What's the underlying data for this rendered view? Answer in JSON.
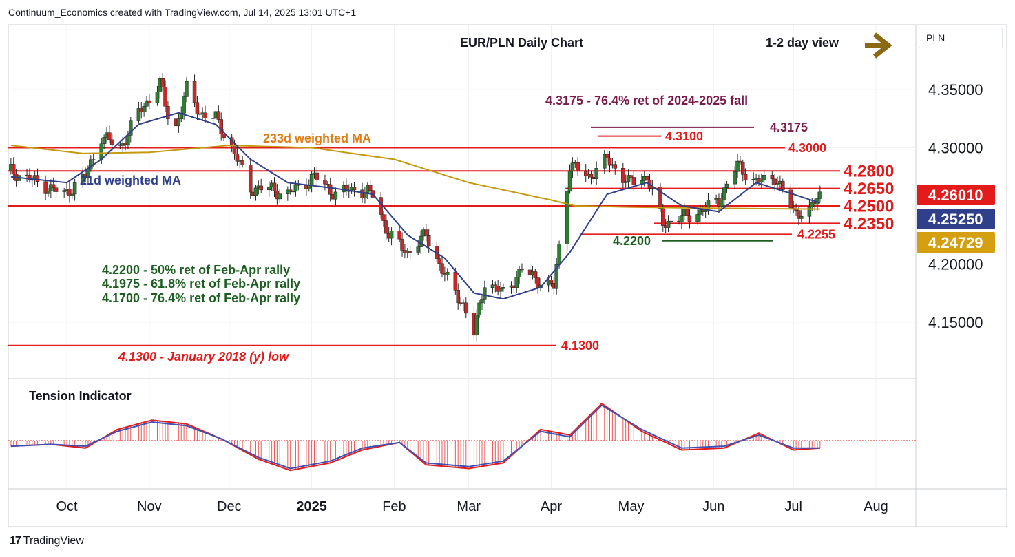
{
  "header": {
    "attribution": "Continuum_Economics created with TradingView.com, Jul 14, 2025 13:01 UTC+1"
  },
  "footer": {
    "brand": "TradingView",
    "logo_icon": "tradingview-logo-icon"
  },
  "currency_label": "PLN",
  "chart_data": {
    "type": "candlestick",
    "title": "EUR/PLN Daily Chart",
    "view_label": "1-2 day view",
    "view_icon": "arrow-right-icon",
    "y_axis": {
      "ylim": [
        4.12,
        4.375
      ],
      "ticks": [
        "4.35000",
        "4.30000",
        "4.20000",
        "4.15000"
      ]
    },
    "x_axis": {
      "ticks": [
        "Oct",
        "Nov",
        "Dec",
        "2025",
        "Feb",
        "Mar",
        "Apr",
        "May",
        "Jun",
        "Jul",
        "Aug"
      ]
    },
    "price_badges": [
      {
        "value": "4.26010",
        "color": "#e31b1b",
        "text_color": "#ffffff"
      },
      {
        "value": "4.25250",
        "color": "#2f3f8a",
        "text_color": "#ffffff"
      },
      {
        "value": "4.24729",
        "color": "#d4a00f",
        "text_color": "#ffffff"
      }
    ],
    "horizontal_levels": [
      {
        "value": 4.3,
        "label": "4.3000",
        "color": "#e31b1b"
      },
      {
        "value": 4.28,
        "label": "4.2800",
        "color": "#e31b1b"
      },
      {
        "value": 4.265,
        "label": "4.2650",
        "color": "#e31b1b"
      },
      {
        "value": 4.25,
        "label": "4.2500",
        "color": "#e31b1b"
      },
      {
        "value": 4.235,
        "label": "4.2350",
        "color": "#e31b1b"
      },
      {
        "value": 4.2255,
        "label": "4.2255",
        "color": "#e31b1b"
      },
      {
        "value": 4.22,
        "label": "4.2200",
        "color": "#1b5e20"
      },
      {
        "value": 4.13,
        "label": "4.1300",
        "color": "#e31b1b"
      },
      {
        "value": 4.31,
        "label": "4.3100",
        "color": "#e31b1b"
      },
      {
        "value": 4.3175,
        "label": "4.3175",
        "color": "#7a1b4b"
      }
    ],
    "annotations": {
      "fib_2024": "4.3175 - 76.4% ret of 2024-2025 fall",
      "ma233": "233d weighted MA",
      "ma21": "21d weighted MA",
      "ret50": "4.2200 - 50% ret of Feb-Apr rally",
      "ret618": "4.1975 - 61.8% ret of Feb-Apr rally",
      "ret764": "4.1700 - 76.4% ret of Feb-Apr rally",
      "low2018": "4.1300 - January 2018 (y) low"
    },
    "indicator_title": "Tension Indicator",
    "colors": {
      "up": "#2e7d32",
      "down": "#c62828",
      "ma21": "#2f3f8a",
      "ma233": "#c49a0c",
      "tension_fast": "#e31b1b",
      "tension_slow": "#3f51b5"
    },
    "price_path": [
      [
        "2024-09-10",
        4.28
      ],
      [
        "2024-09-20",
        4.27
      ],
      [
        "2024-09-30",
        4.26
      ],
      [
        "2024-10-08",
        4.275
      ],
      [
        "2024-10-14",
        4.31
      ],
      [
        "2024-10-21",
        4.3
      ],
      [
        "2024-10-28",
        4.33
      ],
      [
        "2024-11-05",
        4.355
      ],
      [
        "2024-11-10",
        4.31
      ],
      [
        "2024-11-15",
        4.35
      ],
      [
        "2024-11-20",
        4.33
      ],
      [
        "2024-11-26",
        4.325
      ],
      [
        "2024-12-02",
        4.3
      ],
      [
        "2024-12-09",
        4.265
      ],
      [
        "2024-12-16",
        4.265
      ],
      [
        "2024-12-23",
        4.26
      ],
      [
        "2025-01-02",
        4.275
      ],
      [
        "2025-01-10",
        4.26
      ],
      [
        "2025-01-17",
        4.265
      ],
      [
        "2025-01-24",
        4.26
      ],
      [
        "2025-01-30",
        4.225
      ],
      [
        "2025-02-06",
        4.21
      ],
      [
        "2025-02-13",
        4.225
      ],
      [
        "2025-02-20",
        4.19
      ],
      [
        "2025-02-27",
        4.165
      ],
      [
        "2025-03-03",
        4.14
      ],
      [
        "2025-03-07",
        4.185
      ],
      [
        "2025-03-14",
        4.175
      ],
      [
        "2025-03-21",
        4.195
      ],
      [
        "2025-03-28",
        4.185
      ],
      [
        "2025-04-02",
        4.18
      ],
      [
        "2025-04-08",
        4.285
      ],
      [
        "2025-04-15",
        4.275
      ],
      [
        "2025-04-22",
        4.29
      ],
      [
        "2025-04-30",
        4.27
      ],
      [
        "2025-05-07",
        4.275
      ],
      [
        "2025-05-13",
        4.235
      ],
      [
        "2025-05-20",
        4.24
      ],
      [
        "2025-05-27",
        4.245
      ],
      [
        "2025-06-03",
        4.255
      ],
      [
        "2025-06-10",
        4.285
      ],
      [
        "2025-06-17",
        4.27
      ],
      [
        "2025-06-24",
        4.275
      ],
      [
        "2025-07-01",
        4.245
      ],
      [
        "2025-07-07",
        4.245
      ],
      [
        "2025-07-11",
        4.26
      ]
    ],
    "ma21_path": [
      [
        "2024-09-10",
        4.275
      ],
      [
        "2024-10-01",
        4.27
      ],
      [
        "2024-10-14",
        4.29
      ],
      [
        "2024-10-28",
        4.32
      ],
      [
        "2024-11-12",
        4.33
      ],
      [
        "2024-11-26",
        4.32
      ],
      [
        "2024-12-09",
        4.29
      ],
      [
        "2024-12-23",
        4.27
      ],
      [
        "2025-01-10",
        4.265
      ],
      [
        "2025-01-24",
        4.26
      ],
      [
        "2025-02-06",
        4.225
      ],
      [
        "2025-02-20",
        4.205
      ],
      [
        "2025-03-03",
        4.175
      ],
      [
        "2025-03-14",
        4.17
      ],
      [
        "2025-03-28",
        4.18
      ],
      [
        "2025-04-08",
        4.21
      ],
      [
        "2025-04-22",
        4.26
      ],
      [
        "2025-05-07",
        4.27
      ],
      [
        "2025-05-20",
        4.25
      ],
      [
        "2025-06-03",
        4.245
      ],
      [
        "2025-06-17",
        4.27
      ],
      [
        "2025-07-01",
        4.26
      ],
      [
        "2025-07-11",
        4.2525
      ]
    ],
    "ma233_path": [
      [
        "2024-09-10",
        4.302
      ],
      [
        "2024-10-07",
        4.295
      ],
      [
        "2024-11-01",
        4.296
      ],
      [
        "2024-12-01",
        4.302
      ],
      [
        "2025-01-01",
        4.3
      ],
      [
        "2025-02-01",
        4.29
      ],
      [
        "2025-03-01",
        4.27
      ],
      [
        "2025-04-01",
        4.255
      ],
      [
        "2025-04-10",
        4.25
      ],
      [
        "2025-05-01",
        4.249
      ],
      [
        "2025-06-01",
        4.248
      ],
      [
        "2025-07-11",
        4.2473
      ]
    ],
    "tension_fast": [
      [
        "2024-09-10",
        -0.3
      ],
      [
        "2024-09-25",
        -0.2
      ],
      [
        "2024-10-08",
        -0.4
      ],
      [
        "2024-10-20",
        0.6
      ],
      [
        "2024-11-02",
        1.1
      ],
      [
        "2024-11-15",
        0.9
      ],
      [
        "2024-11-28",
        0.1
      ],
      [
        "2024-12-12",
        -1.0
      ],
      [
        "2024-12-24",
        -1.6
      ],
      [
        "2025-01-08",
        -1.2
      ],
      [
        "2025-01-20",
        -0.5
      ],
      [
        "2025-02-03",
        -0.1
      ],
      [
        "2025-02-13",
        -1.3
      ],
      [
        "2025-03-01",
        -1.5
      ],
      [
        "2025-03-14",
        -1.2
      ],
      [
        "2025-03-28",
        0.6
      ],
      [
        "2025-04-08",
        0.3
      ],
      [
        "2025-04-20",
        2.0
      ],
      [
        "2025-05-05",
        0.5
      ],
      [
        "2025-05-20",
        -0.5
      ],
      [
        "2025-06-05",
        -0.4
      ],
      [
        "2025-06-18",
        0.4
      ],
      [
        "2025-07-01",
        -0.5
      ],
      [
        "2025-07-11",
        -0.4
      ]
    ],
    "tension_slow": [
      [
        "2024-09-10",
        -0.3
      ],
      [
        "2024-09-25",
        -0.2
      ],
      [
        "2024-10-08",
        -0.3
      ],
      [
        "2024-10-20",
        0.5
      ],
      [
        "2024-11-02",
        1.0
      ],
      [
        "2024-11-15",
        0.8
      ],
      [
        "2024-11-28",
        0.1
      ],
      [
        "2024-12-12",
        -0.9
      ],
      [
        "2024-12-24",
        -1.5
      ],
      [
        "2025-01-08",
        -1.1
      ],
      [
        "2025-01-20",
        -0.4
      ],
      [
        "2025-02-03",
        -0.1
      ],
      [
        "2025-02-13",
        -1.2
      ],
      [
        "2025-03-01",
        -1.4
      ],
      [
        "2025-03-14",
        -1.1
      ],
      [
        "2025-03-28",
        0.5
      ],
      [
        "2025-04-08",
        0.2
      ],
      [
        "2025-04-20",
        1.9
      ],
      [
        "2025-05-05",
        0.6
      ],
      [
        "2025-05-20",
        -0.4
      ],
      [
        "2025-06-05",
        -0.3
      ],
      [
        "2025-06-18",
        0.3
      ],
      [
        "2025-07-01",
        -0.4
      ],
      [
        "2025-07-11",
        -0.4
      ]
    ]
  }
}
